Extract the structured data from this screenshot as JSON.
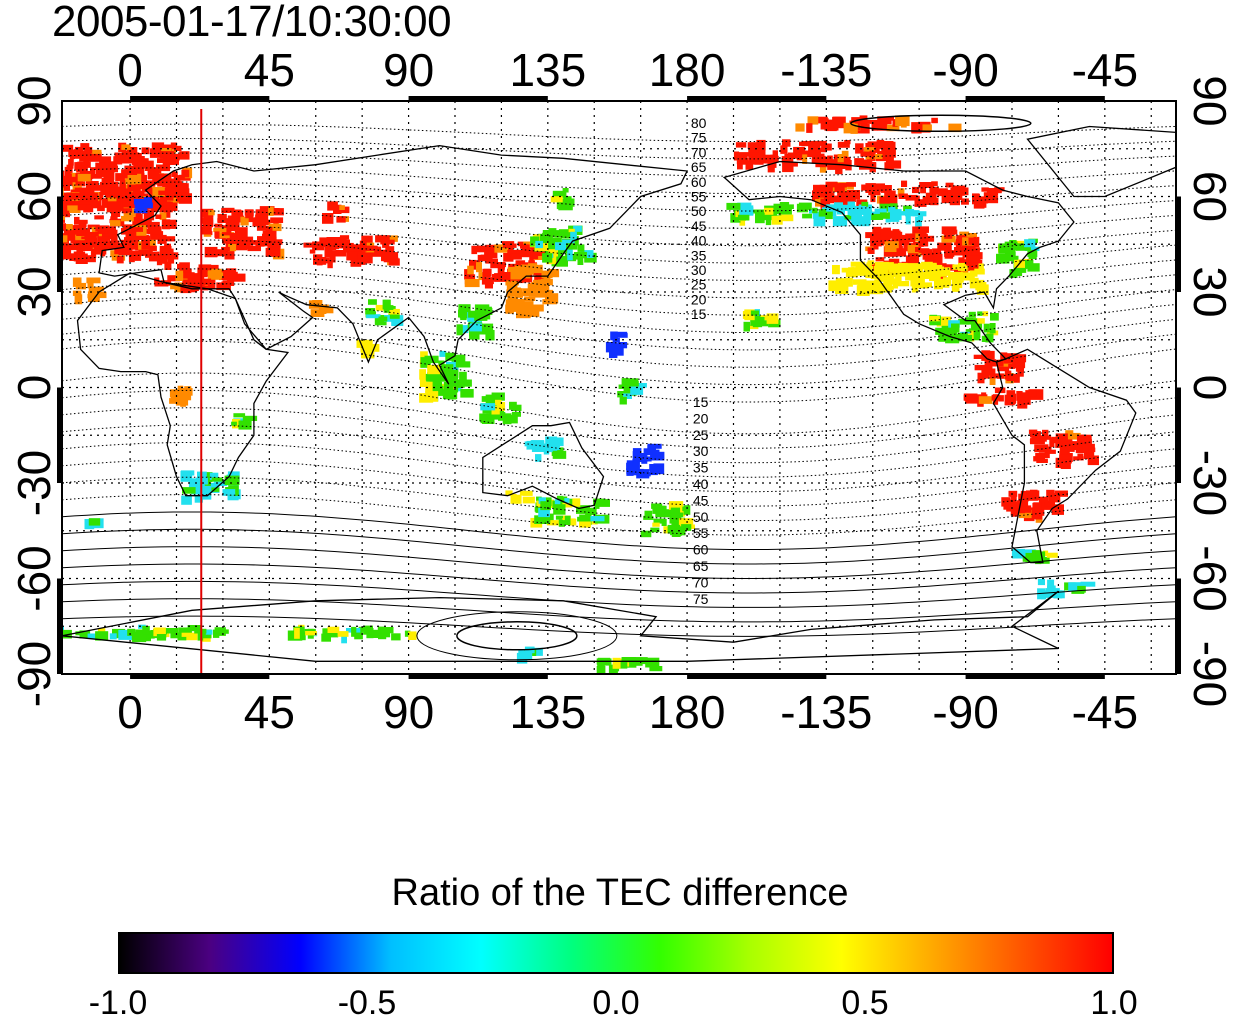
{
  "header": {
    "title": "2005-01-17/10:30:00"
  },
  "map": {
    "projection": "equirectangular",
    "lon_range": [
      -22,
      338
    ],
    "lat_range": [
      -90,
      90
    ],
    "x_ticks": [
      "0",
      "45",
      "90",
      "135",
      "180",
      "-135",
      "-90",
      "-45"
    ],
    "y_ticks": [
      "90",
      "60",
      "30",
      "0",
      "-30",
      "-60",
      "-90"
    ],
    "grid": "dotted",
    "marker_line": {
      "longitude": 23,
      "color": "#e00000"
    },
    "contour_labels_north": [
      "80",
      "75",
      "70",
      "65",
      "60",
      "55",
      "50",
      "45",
      "40",
      "35",
      "30",
      "25",
      "20",
      "15"
    ],
    "contour_labels_south": [
      "15",
      "20",
      "25",
      "30",
      "35",
      "40",
      "45",
      "50",
      "55",
      "60",
      "65",
      "70",
      "75"
    ],
    "contour_label_longitude": 178,
    "data_patches": [
      {
        "lon": -10,
        "lat": 68,
        "w": 55,
        "h": 18,
        "color": "red"
      },
      {
        "lon": -18,
        "lat": 52,
        "w": 60,
        "h": 22,
        "color": "red"
      },
      {
        "lon": 35,
        "lat": 50,
        "w": 25,
        "h": 14,
        "color": "red"
      },
      {
        "lon": 20,
        "lat": 36,
        "w": 25,
        "h": 8,
        "color": "red"
      },
      {
        "lon": -15,
        "lat": 32,
        "w": 8,
        "h": 6,
        "color": "orange"
      },
      {
        "lon": 2,
        "lat": 58,
        "w": 6,
        "h": 4,
        "color": "blue"
      },
      {
        "lon": 70,
        "lat": 44,
        "w": 28,
        "h": 8,
        "color": "red"
      },
      {
        "lon": 65,
        "lat": 56,
        "w": 6,
        "h": 5,
        "color": "red"
      },
      {
        "lon": 120,
        "lat": 40,
        "w": 25,
        "h": 12,
        "color": "red"
      },
      {
        "lon": 128,
        "lat": 32,
        "w": 14,
        "h": 14,
        "color": "orange"
      },
      {
        "lon": 138,
        "lat": 46,
        "w": 18,
        "h": 10,
        "color": "green"
      },
      {
        "lon": 138,
        "lat": 60,
        "w": 6,
        "h": 6,
        "color": "green"
      },
      {
        "lon": 110,
        "lat": 22,
        "w": 10,
        "h": 10,
        "color": "green"
      },
      {
        "lon": 80,
        "lat": 25,
        "w": 10,
        "h": 6,
        "color": "green"
      },
      {
        "lon": 60,
        "lat": 26,
        "w": 6,
        "h": 4,
        "color": "orange"
      },
      {
        "lon": 75,
        "lat": 14,
        "w": 5,
        "h": 5,
        "color": "yellow"
      },
      {
        "lon": 100,
        "lat": 5,
        "w": 14,
        "h": 14,
        "color": "green"
      },
      {
        "lon": 118,
        "lat": -5,
        "w": 12,
        "h": 8,
        "color": "green"
      },
      {
        "lon": 132,
        "lat": -18,
        "w": 10,
        "h": 6,
        "color": "cyan"
      },
      {
        "lon": 124,
        "lat": -33,
        "w": 6,
        "h": 4,
        "color": "yellow"
      },
      {
        "lon": 140,
        "lat": -38,
        "w": 22,
        "h": 8,
        "color": "green"
      },
      {
        "lon": 165,
        "lat": -22,
        "w": 10,
        "h": 10,
        "color": "blue"
      },
      {
        "lon": 172,
        "lat": -40,
        "w": 14,
        "h": 10,
        "color": "green"
      },
      {
        "lon": 160,
        "lat": 0,
        "w": 8,
        "h": 6,
        "color": "green"
      },
      {
        "lon": 155,
        "lat": 15,
        "w": 6,
        "h": 6,
        "color": "blue"
      },
      {
        "lon": 25,
        "lat": -30,
        "w": 18,
        "h": 8,
        "color": "cyan"
      },
      {
        "lon": 15,
        "lat": -2,
        "w": 6,
        "h": 6,
        "color": "orange"
      },
      {
        "lon": 35,
        "lat": -10,
        "w": 5,
        "h": 5,
        "color": "green"
      },
      {
        "lon": -15,
        "lat": -42,
        "w": 5,
        "h": 3,
        "color": "cyan"
      },
      {
        "lon": 0,
        "lat": -76,
        "w": 60,
        "h": 3,
        "color": "green"
      },
      {
        "lon": 70,
        "lat": -76,
        "w": 40,
        "h": 3,
        "color": "green"
      },
      {
        "lon": 160,
        "lat": -86,
        "w": 20,
        "h": 3,
        "color": "green"
      },
      {
        "lon": 130,
        "lat": -82,
        "w": 10,
        "h": 3,
        "color": "cyan"
      },
      {
        "lon": 220,
        "lat": 74,
        "w": 50,
        "h": 8,
        "color": "red"
      },
      {
        "lon": 240,
        "lat": 84,
        "w": 50,
        "h": 3,
        "color": "red"
      },
      {
        "lon": 250,
        "lat": 62,
        "w": 60,
        "h": 6,
        "color": "red"
      },
      {
        "lon": 235,
        "lat": 56,
        "w": 40,
        "h": 5,
        "color": "cyan"
      },
      {
        "lon": 255,
        "lat": 44,
        "w": 35,
        "h": 14,
        "color": "red"
      },
      {
        "lon": 250,
        "lat": 36,
        "w": 50,
        "h": 8,
        "color": "yellow"
      },
      {
        "lon": 285,
        "lat": 42,
        "w": 12,
        "h": 10,
        "color": "green"
      },
      {
        "lon": 268,
        "lat": 20,
        "w": 20,
        "h": 8,
        "color": "green"
      },
      {
        "lon": 280,
        "lat": 8,
        "w": 15,
        "h": 8,
        "color": "red"
      },
      {
        "lon": 280,
        "lat": -2,
        "w": 22,
        "h": 4,
        "color": "red"
      },
      {
        "lon": 300,
        "lat": -18,
        "w": 20,
        "h": 10,
        "color": "red"
      },
      {
        "lon": 290,
        "lat": -36,
        "w": 18,
        "h": 8,
        "color": "red"
      },
      {
        "lon": 290,
        "lat": -52,
        "w": 15,
        "h": 3,
        "color": "green"
      },
      {
        "lon": 300,
        "lat": -62,
        "w": 15,
        "h": 4,
        "color": "cyan"
      },
      {
        "lon": 203,
        "lat": 22,
        "w": 10,
        "h": 6,
        "color": "green"
      },
      {
        "lon": 200,
        "lat": 56,
        "w": 20,
        "h": 5,
        "color": "green"
      }
    ]
  },
  "colorbar": {
    "title": "Ratio of the TEC difference",
    "min": -1.0,
    "max": 1.0,
    "ticks": [
      "-1.0",
      "-0.5",
      "0.0",
      "0.5",
      "1.0"
    ],
    "colors": [
      "#000000",
      "#4b0082",
      "#0000ff",
      "#00bfff",
      "#00ffff",
      "#00ff7f",
      "#33ff00",
      "#aaff00",
      "#ffff00",
      "#ffaa00",
      "#ff5500",
      "#ff0000"
    ]
  }
}
